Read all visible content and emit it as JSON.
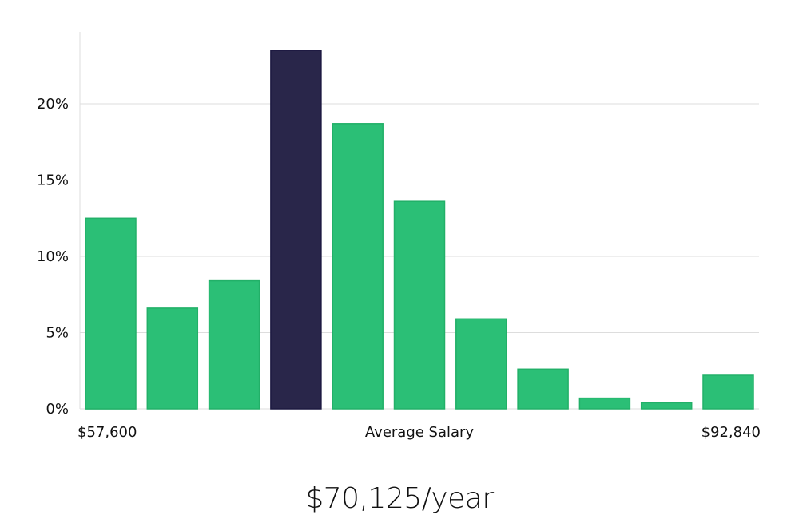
{
  "chart_data": {
    "type": "bar",
    "values": [
      12.5,
      6.6,
      8.4,
      23.5,
      18.7,
      13.6,
      5.9,
      2.6,
      0.7,
      0.4,
      2.2
    ],
    "highlight_index": 3,
    "ylim": [
      0,
      25
    ],
    "yticks": [
      0,
      5,
      10,
      15,
      20
    ],
    "ytick_labels": [
      "0%",
      "5%",
      "10%",
      "15%",
      "20%"
    ],
    "x_labels": {
      "left": "$57,600",
      "center": "Average Salary",
      "right": "$92,840"
    },
    "colors": {
      "bar": "#2bbf76",
      "bar_edge": "#22b068",
      "highlight": "#29264a",
      "highlight_edge": "#1c1940"
    }
  },
  "salary_display": "$70,125/year"
}
